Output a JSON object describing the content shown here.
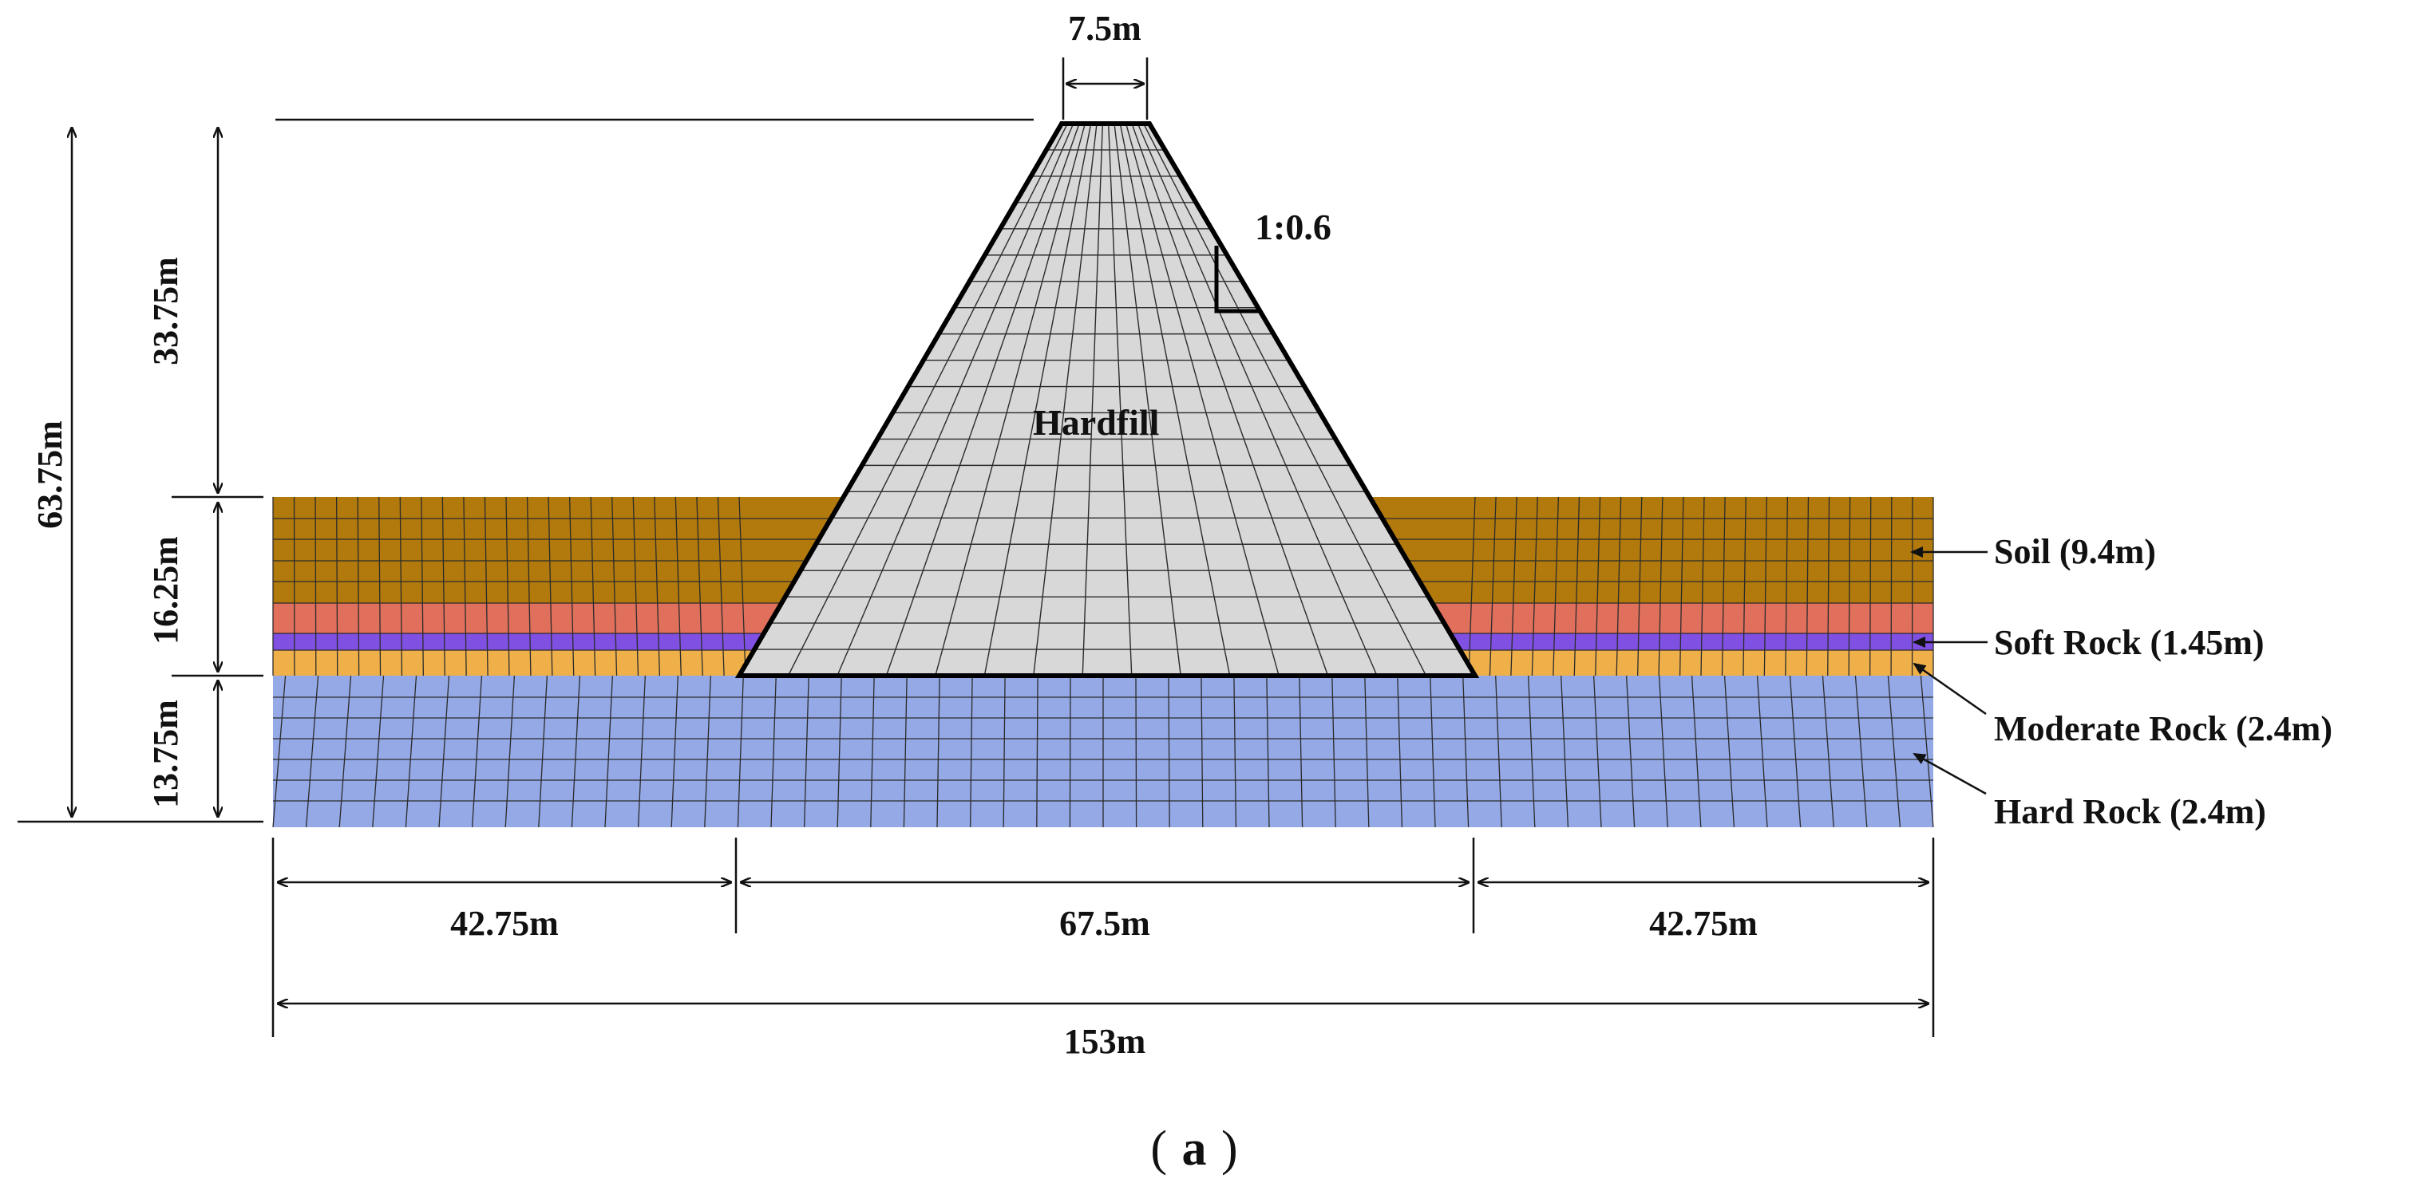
{
  "diagram": {
    "dam_label": "Hardfill",
    "slope_label": "1:0.6",
    "crest_width": "7.5m",
    "dimensions": {
      "total_height": "63.75m",
      "dam_height_above_ground": "33.75m",
      "upper_foundation": "16.25m",
      "lower_foundation": "13.75m",
      "left_width": "42.75m",
      "base_width": "67.5m",
      "right_width": "42.75m",
      "total_width": "153m"
    },
    "layers": [
      {
        "label": "Soil (9.4m)",
        "color": "#b27a0c"
      },
      {
        "label": "Soft Rock (1.45m)",
        "color": "#e06f5c"
      },
      {
        "label": "Moderate Rock (2.4m)",
        "color": "#efb04a"
      },
      {
        "label": "Hard Rock (2.4m)",
        "color": "#94a9e6"
      }
    ],
    "layer_colors": {
      "soil": "#b27a0c",
      "red_band": "#e06f5c",
      "soft_rock_band": "#8050e2",
      "moderate_rock": "#efb04a",
      "hard_rock": "#94a9e6",
      "hardfill": "#d8d8d8",
      "mesh": "#2b2b2b"
    },
    "caption_letter": "a"
  }
}
